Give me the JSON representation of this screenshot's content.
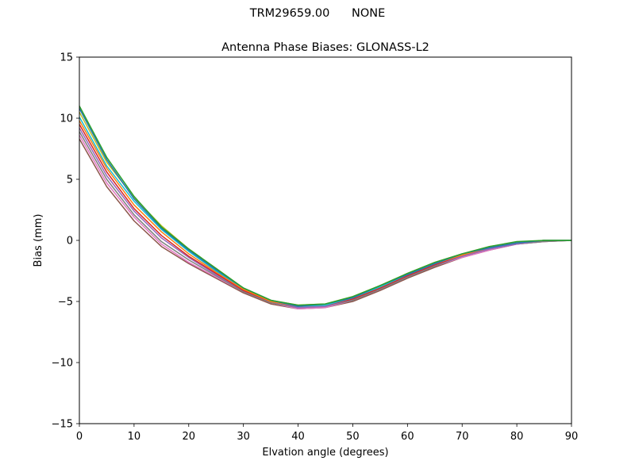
{
  "header": {
    "suptitle": "TRM29659.00      NONE"
  },
  "chart_data": {
    "type": "line",
    "title": "Antenna Phase Biases: GLONASS-L2",
    "xlabel": "Elvation angle (degrees)",
    "ylabel": "Bias (mm)",
    "xlim": [
      0,
      90
    ],
    "ylim": [
      -15,
      15
    ],
    "xticks": [
      0,
      10,
      20,
      30,
      40,
      50,
      60,
      70,
      80,
      90
    ],
    "yticks": [
      -15,
      -10,
      -5,
      0,
      5,
      10,
      15
    ],
    "ytick_labels": [
      "−15",
      "−10",
      "−5",
      "0",
      "5",
      "10",
      "15"
    ],
    "grid": false,
    "legend": "none",
    "x": [
      0,
      5,
      10,
      15,
      20,
      25,
      30,
      35,
      40,
      45,
      50,
      55,
      60,
      65,
      70,
      75,
      80,
      85,
      90
    ],
    "series": [
      {
        "color": "#8c564b",
        "values": [
          8.3,
          4.4,
          1.6,
          -0.5,
          -1.9,
          -3.1,
          -4.3,
          -5.2,
          -5.6,
          -5.5,
          -5.0,
          -4.1,
          -3.1,
          -2.2,
          -1.4,
          -0.8,
          -0.3,
          -0.1,
          0.0
        ]
      },
      {
        "color": "#e377c2",
        "values": [
          8.6,
          4.7,
          1.9,
          -0.3,
          -1.8,
          -3.0,
          -4.2,
          -5.1,
          -5.6,
          -5.5,
          -4.9,
          -4.0,
          -3.0,
          -2.1,
          -1.4,
          -0.8,
          -0.3,
          -0.1,
          0.0
        ]
      },
      {
        "color": "#7f7f7f",
        "values": [
          8.9,
          5.0,
          2.1,
          -0.1,
          -1.6,
          -2.9,
          -4.2,
          -5.1,
          -5.5,
          -5.4,
          -4.9,
          -4.0,
          -3.0,
          -2.1,
          -1.3,
          -0.7,
          -0.3,
          -0.1,
          0.0
        ]
      },
      {
        "color": "#9467bd",
        "values": [
          9.2,
          5.3,
          2.4,
          0.2,
          -1.4,
          -2.8,
          -4.1,
          -5.0,
          -5.5,
          -5.4,
          -4.8,
          -3.9,
          -2.9,
          -2.0,
          -1.3,
          -0.7,
          -0.3,
          0.0,
          0.0
        ]
      },
      {
        "color": "#d62728",
        "values": [
          9.5,
          5.6,
          2.6,
          0.4,
          -1.3,
          -2.7,
          -4.1,
          -5.0,
          -5.4,
          -5.3,
          -4.8,
          -3.9,
          -2.9,
          -2.0,
          -1.2,
          -0.6,
          -0.2,
          0.0,
          0.0
        ]
      },
      {
        "color": "#ff7f0e",
        "values": [
          9.8,
          5.9,
          2.9,
          0.7,
          -1.1,
          -2.6,
          -4.0,
          -5.0,
          -5.4,
          -5.3,
          -4.7,
          -3.8,
          -2.8,
          -1.9,
          -1.2,
          -0.6,
          -0.2,
          0.0,
          0.0
        ]
      },
      {
        "color": "#17becf",
        "values": [
          10.1,
          6.1,
          3.2,
          0.9,
          -0.9,
          -2.5,
          -3.9,
          -4.9,
          -5.4,
          -5.3,
          -4.7,
          -3.8,
          -2.8,
          -1.9,
          -1.1,
          -0.6,
          -0.2,
          0.0,
          0.0
        ]
      },
      {
        "color": "#bcbd22",
        "values": [
          10.5,
          6.4,
          3.5,
          1.2,
          -0.7,
          -2.3,
          -3.9,
          -4.9,
          -5.3,
          -5.2,
          -4.6,
          -3.7,
          -2.7,
          -1.8,
          -1.1,
          -0.5,
          -0.2,
          0.0,
          0.0
        ]
      },
      {
        "color": "#1f77b4",
        "values": [
          10.8,
          6.6,
          3.4,
          1.0,
          -0.8,
          -2.4,
          -3.9,
          -4.9,
          -5.4,
          -5.2,
          -4.7,
          -3.7,
          -2.8,
          -1.9,
          -1.1,
          -0.6,
          -0.2,
          0.0,
          0.0
        ]
      },
      {
        "color": "#2ca02c",
        "values": [
          11.0,
          6.8,
          3.6,
          1.1,
          -0.7,
          -2.3,
          -3.9,
          -4.9,
          -5.3,
          -5.2,
          -4.6,
          -3.7,
          -2.7,
          -1.8,
          -1.1,
          -0.5,
          -0.1,
          0.0,
          0.0
        ]
      }
    ]
  }
}
